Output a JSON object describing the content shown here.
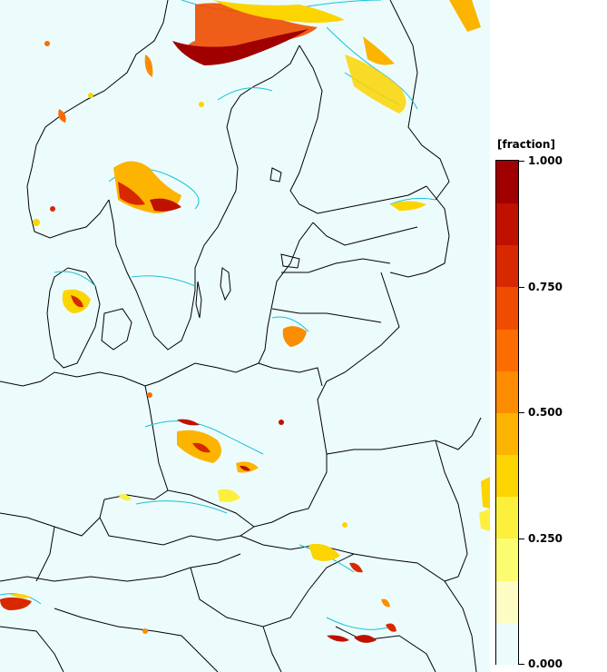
{
  "legend": {
    "title": "[fraction]",
    "labels": [
      {
        "text": "1.000",
        "value": 1.0
      },
      {
        "text": "0.750",
        "value": 0.75
      },
      {
        "text": "0.500",
        "value": 0.5
      },
      {
        "text": "0.250",
        "value": 0.25
      },
      {
        "text": "0.000",
        "value": 0.0
      }
    ],
    "colors": [
      "#ecfcfc",
      "#fcfcc4",
      "#fcfc70",
      "#fcf03c",
      "#fcd400",
      "#fcb400",
      "#fc8c00",
      "#fc6c00",
      "#f04c00",
      "#d82800",
      "#c01000",
      "#a00000"
    ]
  },
  "map": {
    "background_color": "#ecfcfc",
    "contour_color": "#18c0d8",
    "border_color": "#000000"
  }
}
